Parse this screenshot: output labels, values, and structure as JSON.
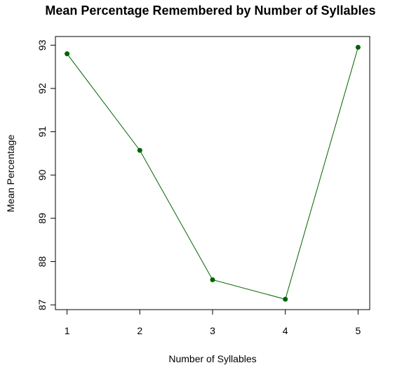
{
  "chart_data": {
    "type": "line",
    "title": "Mean Percentage Remembered by Number of Syllables",
    "xlabel": "Number of Syllables",
    "ylabel": "Mean Percentage",
    "x": [
      1,
      2,
      3,
      4,
      5
    ],
    "x_tick_labels": [
      "1",
      "2",
      "3",
      "4",
      "5"
    ],
    "series": [
      {
        "values": [
          92.8,
          90.57,
          87.58,
          87.13,
          92.95
        ]
      }
    ],
    "y_ticks": [
      87,
      88,
      89,
      90,
      91,
      92,
      93
    ],
    "y_tick_labels": [
      "87",
      "88",
      "89",
      "90",
      "91",
      "92",
      "93"
    ],
    "xlim": [
      0.84,
      5.16
    ],
    "ylim": [
      86.89,
      93.2
    ],
    "grid": false,
    "legend": "none",
    "line_color": "#006400",
    "marker_color": "#006400",
    "marker_shape": "filled-circle"
  }
}
